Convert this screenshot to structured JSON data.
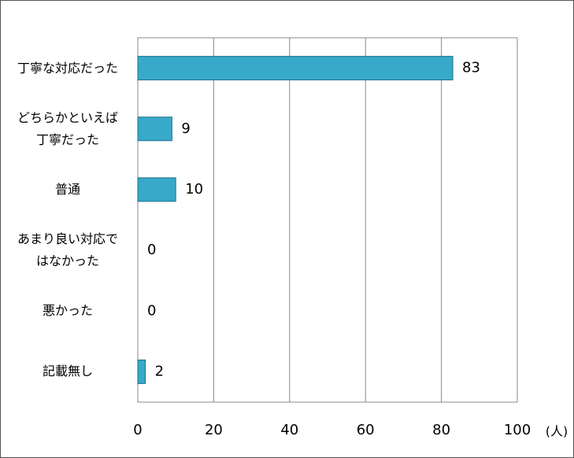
{
  "chart_data": {
    "type": "bar",
    "orientation": "horizontal",
    "categories": [
      "丁寧な対応だった",
      "どちらかといえば丁寧だった",
      "普通",
      "あまり良い対応ではなかった",
      "悪かった",
      "記載無し"
    ],
    "values": [
      83,
      9,
      10,
      0,
      0,
      2
    ],
    "color": "#37a9c9",
    "xlim": [
      0,
      100
    ],
    "xticks": [
      0,
      20,
      40,
      60,
      80,
      100
    ],
    "x_unit": "(人)",
    "grid": true
  }
}
